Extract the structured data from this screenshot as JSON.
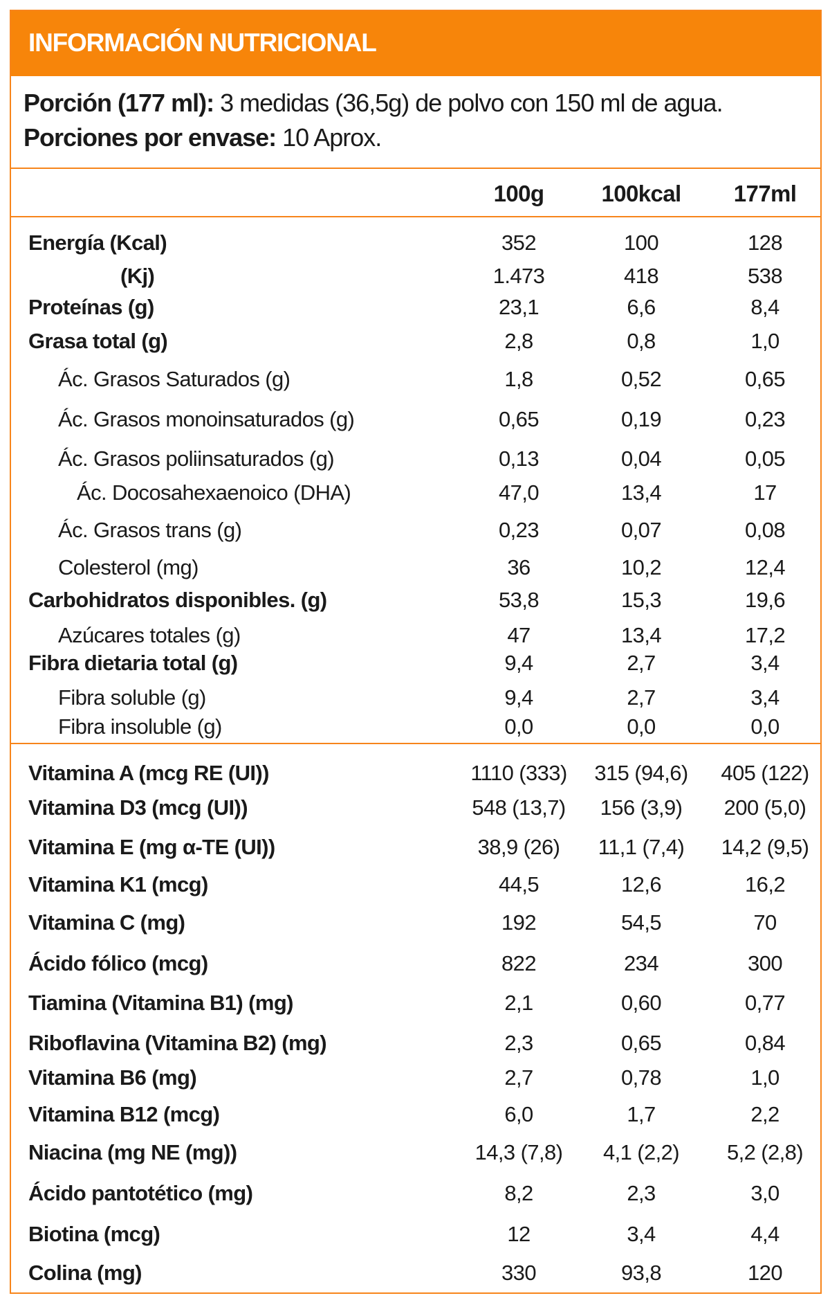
{
  "title": "INFORMACIÓN NUTRICIONAL",
  "serving": {
    "portion_label": "Porción (177 ml):",
    "portion_value": "3 medidas (36,5g) de polvo con 150 ml de agua.",
    "per_container_label": "Porciones por envase:",
    "per_container_value": "10 Aprox."
  },
  "columns": [
    "100g",
    "100kcal",
    "177ml"
  ],
  "nutrients": [
    {
      "label": "Energía (Kcal)",
      "bold": true,
      "indent": 0,
      "values": [
        "352",
        "100",
        "128"
      ]
    },
    {
      "label": "(Kj)",
      "bold": true,
      "indent": 3,
      "values": [
        "1.473",
        "418",
        "538"
      ]
    },
    {
      "label": "Proteínas (g)",
      "bold": true,
      "indent": 0,
      "values": [
        "23,1",
        "6,6",
        "8,4"
      ]
    },
    {
      "label": "Grasa total (g)",
      "bold": true,
      "indent": 0,
      "values": [
        "2,8",
        "0,8",
        "1,0"
      ]
    },
    {
      "label": "Ác. Grasos Saturados (g)",
      "bold": false,
      "indent": 1,
      "values": [
        "1,8",
        "0,52",
        "0,65"
      ]
    },
    {
      "label": "Ác. Grasos monoinsaturados (g)",
      "bold": false,
      "indent": 1,
      "values": [
        "0,65",
        "0,19",
        "0,23"
      ]
    },
    {
      "label": "Ác. Grasos poliinsaturados (g)",
      "bold": false,
      "indent": 1,
      "values": [
        "0,13",
        "0,04",
        "0,05"
      ]
    },
    {
      "label": "Ác. Docosahexaenoico (DHA)",
      "bold": false,
      "indent": 2,
      "values": [
        "47,0",
        "13,4",
        "17"
      ]
    },
    {
      "label": "Ác. Grasos trans (g)",
      "bold": false,
      "indent": 1,
      "values": [
        "0,23",
        "0,07",
        "0,08"
      ]
    },
    {
      "label": "Colesterol (mg)",
      "bold": false,
      "indent": 1,
      "values": [
        "36",
        "10,2",
        "12,4"
      ]
    },
    {
      "label": "Carbohidratos disponibles. (g)",
      "bold": true,
      "indent": 0,
      "values": [
        "53,8",
        "15,3",
        "19,6"
      ]
    },
    {
      "label": "Azúcares totales (g)",
      "bold": false,
      "indent": 1,
      "values": [
        "47",
        "13,4",
        "17,2"
      ]
    },
    {
      "label": "Fibra dietaria total (g)",
      "bold": true,
      "indent": 0,
      "values": [
        "9,4",
        "2,7",
        "3,4"
      ]
    },
    {
      "label": "Fibra soluble (g)",
      "bold": false,
      "indent": 1,
      "values": [
        "9,4",
        "2,7",
        "3,4"
      ]
    },
    {
      "label": "Fibra insoluble (g)",
      "bold": false,
      "indent": 1,
      "values": [
        "0,0",
        "0,0",
        "0,0"
      ]
    }
  ],
  "vitamins": [
    {
      "label": "Vitamina A (mcg RE (UI))",
      "values": [
        "1110 (333)",
        "315 (94,6)",
        "405 (122)"
      ]
    },
    {
      "label": "Vitamina D3 (mcg (UI))",
      "values": [
        "548 (13,7)",
        "156 (3,9)",
        "200 (5,0)"
      ]
    },
    {
      "label": "Vitamina E (mg α-TE (UI))",
      "values": [
        "38,9 (26)",
        "11,1 (7,4)",
        "14,2 (9,5)"
      ]
    },
    {
      "label": "Vitamina K1 (mcg)",
      "values": [
        "44,5",
        "12,6",
        "16,2"
      ]
    },
    {
      "label": "Vitamina C (mg)",
      "values": [
        "192",
        "54,5",
        "70"
      ]
    },
    {
      "label": "Ácido fólico (mcg)",
      "values": [
        "822",
        "234",
        "300"
      ]
    },
    {
      "label": "Tiamina (Vitamina B1) (mg)",
      "values": [
        "2,1",
        "0,60",
        "0,77"
      ]
    },
    {
      "label": "Riboflavina (Vitamina B2) (mg)",
      "values": [
        "2,3",
        "0,65",
        "0,84"
      ]
    },
    {
      "label": "Vitamina B6 (mg)",
      "values": [
        "2,7",
        "0,78",
        "1,0"
      ]
    },
    {
      "label": "Vitamina B12 (mcg)",
      "values": [
        "6,0",
        "1,7",
        "2,2"
      ]
    },
    {
      "label": "Niacina (mg NE (mg))",
      "values": [
        "14,3 (7,8)",
        "4,1 (2,2)",
        "5,2 (2,8)"
      ]
    },
    {
      "label": "Ácido pantotético (mg)",
      "values": [
        "8,2",
        "2,3",
        "3,0"
      ]
    },
    {
      "label": "Biotina (mcg)",
      "values": [
        "12",
        "3,4",
        "4,4"
      ]
    },
    {
      "label": "Colina (mg)",
      "values": [
        "330",
        "93,8",
        "120"
      ]
    }
  ],
  "colors": {
    "accent": "#f7850a",
    "text": "#1a1a1a"
  }
}
